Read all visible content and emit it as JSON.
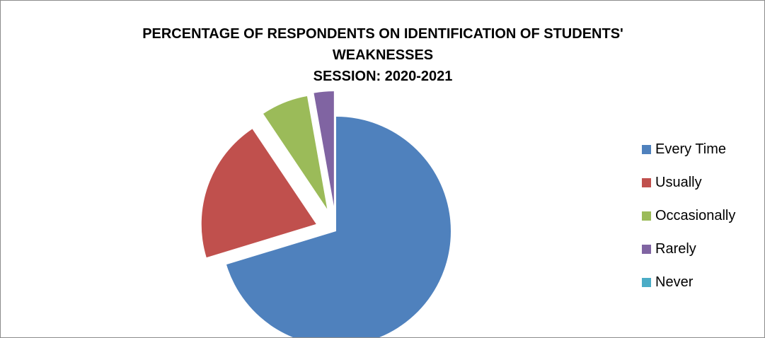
{
  "chart_data": {
    "type": "pie",
    "title": [
      "PERCENTAGE OF RESPONDENTS ON IDENTIFICATION OF STUDENTS'",
      "WEAKNESSES",
      "SESSION: 2020-2021"
    ],
    "slices": [
      {
        "label": "Every Time",
        "value": 70.3,
        "color": "#4f81bd"
      },
      {
        "label": "Usually",
        "value": 20.3,
        "color": "#c0504d"
      },
      {
        "label": "Occasionally",
        "value": 6.6,
        "color": "#9bbb59"
      },
      {
        "label": "Rarely",
        "value": 2.8,
        "color": "#8064a2"
      },
      {
        "label": "Never",
        "value": 0,
        "color": "#4bacc6"
      }
    ],
    "legend_position": "right",
    "exploded": true
  }
}
